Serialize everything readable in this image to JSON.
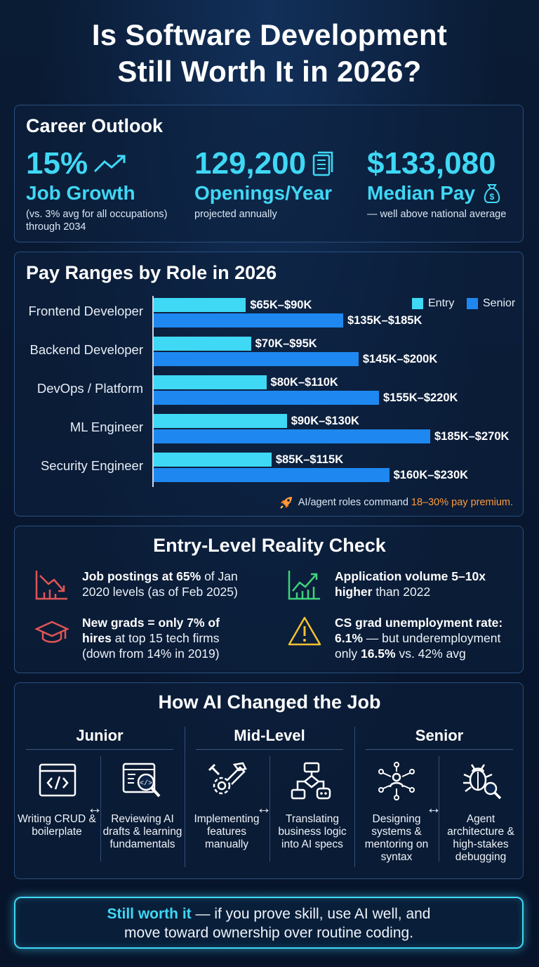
{
  "header": {
    "title_line1": "Is Software Development",
    "title_line2": "Still Worth It in 2026?"
  },
  "outlook": {
    "title": "Career Outlook",
    "stats": [
      {
        "value": "15%",
        "label": "Job Growth",
        "sub1": "(vs. 3% avg for all occupations)",
        "sub2": "through 2034",
        "icon": "trend-up-icon"
      },
      {
        "value": "129,200",
        "label": "Openings/Year",
        "sub1": "projected annually",
        "sub2": "",
        "icon": "document-icon"
      },
      {
        "value": "$133,080",
        "label": "Median Pay",
        "sub1": "— well above national average",
        "sub2": "",
        "icon": "money-bag-icon"
      }
    ]
  },
  "pay": {
    "title": "Pay Ranges by Role in 2026",
    "legend": {
      "entry": "Entry",
      "senior": "Senior"
    },
    "note_prefix": "AI/agent roles command",
    "note_highlight": "18–30% pay premium.",
    "note_icon": "rocket-icon",
    "colors": {
      "entry": "#3fd8f5",
      "senior": "#1e88f0"
    }
  },
  "chart_data": {
    "type": "bar",
    "orientation": "horizontal",
    "categories": [
      "Frontend Developer",
      "Backend Developer",
      "DevOps / Platform",
      "ML Engineer",
      "Security Engineer"
    ],
    "series": [
      {
        "name": "Entry",
        "low": [
          65,
          70,
          80,
          90,
          85
        ],
        "high": [
          90,
          95,
          110,
          130,
          115
        ],
        "labels": [
          "$65K–$90K",
          "$70K–$95K",
          "$80K–$110K",
          "$90K–$130K",
          "$85K–$115K"
        ]
      },
      {
        "name": "Senior",
        "low": [
          135,
          145,
          155,
          185,
          160
        ],
        "high": [
          185,
          200,
          220,
          270,
          230
        ],
        "labels": [
          "$135K–$185K",
          "$145K–$200K",
          "$155K–$220K",
          "$185K–$270K",
          "$160K–$230K"
        ]
      }
    ],
    "legend_position": "top-right",
    "grid": false
  },
  "reality": {
    "title": "Entry-Level Reality Check",
    "facts": [
      {
        "icon": "declining-chart-icon",
        "b1": "Job postings at 65%",
        "t1": " of Jan",
        "line2": "2020 levels (as of Feb 2025)",
        "line3": ""
      },
      {
        "icon": "rising-chart-icon",
        "b1": "Application volume 5–10x",
        "t1": "",
        "line2_b": "higher",
        "line2": " than 2022",
        "line3": ""
      },
      {
        "icon": "graduation-cap-icon",
        "b1": "New grads = only 7% of",
        "t1": "",
        "line2_b": "hires",
        "line2": " at top 15 tech firms",
        "line3": "(down from 14% in 2019)"
      },
      {
        "icon": "warning-icon",
        "b1": "CS grad unemployment rate:",
        "t1": "",
        "line2_b": "6.1%",
        "line2": " — but underemployment",
        "line3_a": "only ",
        "line3_b": "16.5%",
        "line3": " vs. 42% avg"
      }
    ]
  },
  "ai": {
    "title": "How AI Changed the Job",
    "columns": [
      {
        "head": "Junior",
        "tasks": [
          "Writing CRUD & boilerplate",
          "Reviewing AI drafts & learning fundamentals"
        ],
        "icons": [
          "code-window-icon",
          "code-magnifier-icon"
        ]
      },
      {
        "head": "Mid-Level",
        "tasks": [
          "Implementing features manually",
          "Translating business logic into AI specs"
        ],
        "icons": [
          "tools-gear-icon",
          "flowchart-robot-icon"
        ]
      },
      {
        "head": "Senior",
        "tasks": [
          "Designing systems & mentoring on syntax",
          "Agent architecture & high-stakes debugging"
        ],
        "icons": [
          "network-person-icon",
          "bug-magnifier-icon"
        ]
      }
    ],
    "arrow": "↔"
  },
  "callout": {
    "highlight": "Still worth it",
    "line1": " — if you prove skill, use AI well, and",
    "line2": "move toward ownership over routine coding."
  }
}
